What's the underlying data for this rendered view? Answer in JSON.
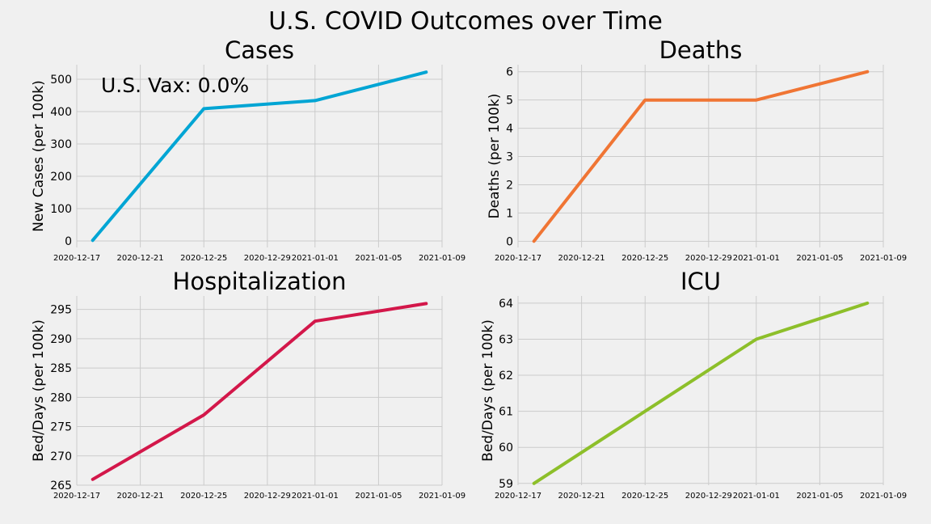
{
  "figure": {
    "title": "U.S. COVID Outcomes over Time"
  },
  "chart_data": [
    {
      "type": "line",
      "title": "Cases",
      "ylabel": "New Cases (per 100k)",
      "color": "#00a5d4",
      "x": [
        "2020-12-18",
        "2020-12-25",
        "2021-01-01",
        "2021-01-08"
      ],
      "y": [
        2,
        409,
        434,
        522
      ],
      "xlim": [
        "2020-12-17",
        "2021-01-09"
      ],
      "xticks": [
        "2020-12-17",
        "2020-12-21",
        "2020-12-25",
        "2020-12-29",
        "2021-01-01",
        "2021-01-05",
        "2021-01-09"
      ],
      "ylim": [
        -20,
        545
      ],
      "yticks": [
        0,
        100,
        200,
        300,
        400,
        500
      ],
      "annotation": "U.S. Vax: 0.0%",
      "grid": true
    },
    {
      "type": "line",
      "title": "Deaths",
      "ylabel": "Deaths (per 100k)",
      "color": "#f07534",
      "x": [
        "2020-12-18",
        "2020-12-25",
        "2021-01-01",
        "2021-01-08"
      ],
      "y": [
        0,
        5,
        5,
        6
      ],
      "xlim": [
        "2020-12-17",
        "2021-01-09"
      ],
      "xticks": [
        "2020-12-17",
        "2020-12-21",
        "2020-12-25",
        "2020-12-29",
        "2021-01-01",
        "2021-01-05",
        "2021-01-09"
      ],
      "ylim": [
        -0.22,
        6.25
      ],
      "yticks": [
        0,
        1,
        2,
        3,
        4,
        5,
        6
      ],
      "grid": true
    },
    {
      "type": "line",
      "title": "Hospitalization",
      "ylabel": "Bed/Days (per 100k)",
      "color": "#d3174a",
      "x": [
        "2020-12-18",
        "2020-12-25",
        "2021-01-01",
        "2021-01-08"
      ],
      "y": [
        266,
        277,
        293,
        296
      ],
      "xlim": [
        "2020-12-17",
        "2021-01-09"
      ],
      "xticks": [
        "2020-12-17",
        "2020-12-21",
        "2020-12-25",
        "2020-12-29",
        "2021-01-01",
        "2021-01-05",
        "2021-01-09"
      ],
      "ylim": [
        265,
        297.3
      ],
      "yticks": [
        265,
        270,
        275,
        280,
        285,
        290,
        295
      ],
      "grid": true
    },
    {
      "type": "line",
      "title": "ICU",
      "ylabel": "Bed/Days (per 100k)",
      "color": "#8dbf2a",
      "x": [
        "2020-12-18",
        "2020-12-25",
        "2021-01-01",
        "2021-01-08"
      ],
      "y": [
        59,
        61,
        63,
        64
      ],
      "xlim": [
        "2020-12-17",
        "2021-01-09"
      ],
      "xticks": [
        "2020-12-17",
        "2020-12-21",
        "2020-12-25",
        "2020-12-29",
        "2021-01-01",
        "2021-01-05",
        "2021-01-09"
      ],
      "ylim": [
        58.95,
        64.2
      ],
      "yticks": [
        59,
        60,
        61,
        62,
        63,
        64
      ],
      "grid": true
    }
  ]
}
